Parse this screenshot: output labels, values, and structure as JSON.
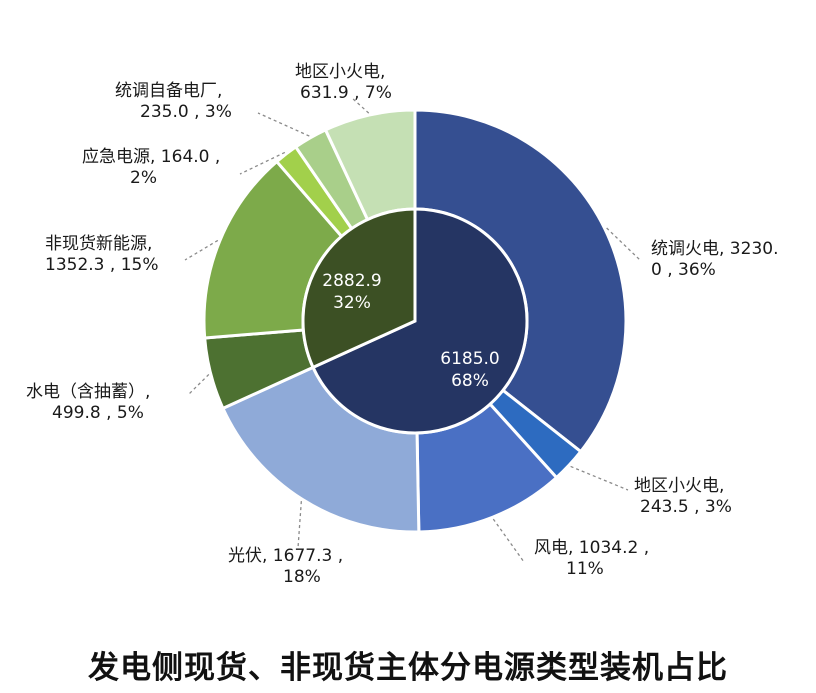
{
  "colors": {
    "inner_spot": "#253563",
    "inner_nonspot": "#3c5024",
    "outer_thermal": "#354f91",
    "outer_local_small_thermal_spot": "#2d6bc0",
    "outer_wind": "#4a70c4",
    "outer_solar": "#8faad8",
    "outer_hydro": "#4d7131",
    "outer_new_energy": "#7daa4a",
    "outer_emergency": "#a2d04b",
    "outer_self_owned": "#a9cf8a",
    "outer_local_small_thermal_nonspot": "#c5e0b4",
    "separator": "#ffffff",
    "leader_line": "#8a8a8a"
  },
  "chart_data": {
    "type": "pie",
    "subtype": "nested-donut",
    "title": "发电侧现货、非现货主体分电源类型装机占比",
    "inner_ring": [
      {
        "value": 6185.0,
        "percent": 68,
        "label_line1": "6185.0",
        "label_line2": "68%",
        "color_key": "inner_spot"
      },
      {
        "value": 2882.9,
        "percent": 32,
        "label_line1": "2882.9",
        "label_line2": "32%",
        "color_key": "inner_nonspot"
      }
    ],
    "outer_ring": [
      {
        "name": "统调火电",
        "value": 3230.0,
        "percent": 36,
        "label_line1": "统调火电, 3230.",
        "label_line2": "0 , 36%",
        "color_key": "outer_thermal"
      },
      {
        "name": "地区小火电",
        "value": 243.5,
        "percent": 3,
        "label_line1": "地区小火电,",
        "label_line2": "243.5 , 3%",
        "color_key": "outer_local_small_thermal_spot"
      },
      {
        "name": "风电",
        "value": 1034.2,
        "percent": 11,
        "label_line1": "风电, 1034.2 ,",
        "label_line2": "11%",
        "color_key": "outer_wind"
      },
      {
        "name": "光伏",
        "value": 1677.3,
        "percent": 18,
        "label_line1": "光伏, 1677.3 ,",
        "label_line2": "18%",
        "color_key": "outer_solar"
      },
      {
        "name": "水电（含抽蓄）",
        "value": 499.8,
        "percent": 5,
        "label_line1": "水电（含抽蓄）,",
        "label_line2": "499.8 , 5%",
        "color_key": "outer_hydro"
      },
      {
        "name": "非现货新能源",
        "value": 1352.3,
        "percent": 15,
        "label_line1": "非现货新能源,",
        "label_line2": "1352.3 , 15%",
        "color_key": "outer_new_energy"
      },
      {
        "name": "应急电源",
        "value": 164.0,
        "percent": 2,
        "label_line1": "应急电源, 164.0 ,",
        "label_line2": "2%",
        "color_key": "outer_emergency"
      },
      {
        "name": "统调自备电厂",
        "value": 235.0,
        "percent": 3,
        "label_line1": "统调自备电厂,",
        "label_line2": "235.0 , 3%",
        "color_key": "outer_self_owned"
      },
      {
        "name": "地区小火电",
        "value": 631.9,
        "percent": 7,
        "label_line1": "地区小火电,",
        "label_line2": "631.9 , 7%",
        "color_key": "outer_local_small_thermal_nonspot"
      }
    ]
  }
}
